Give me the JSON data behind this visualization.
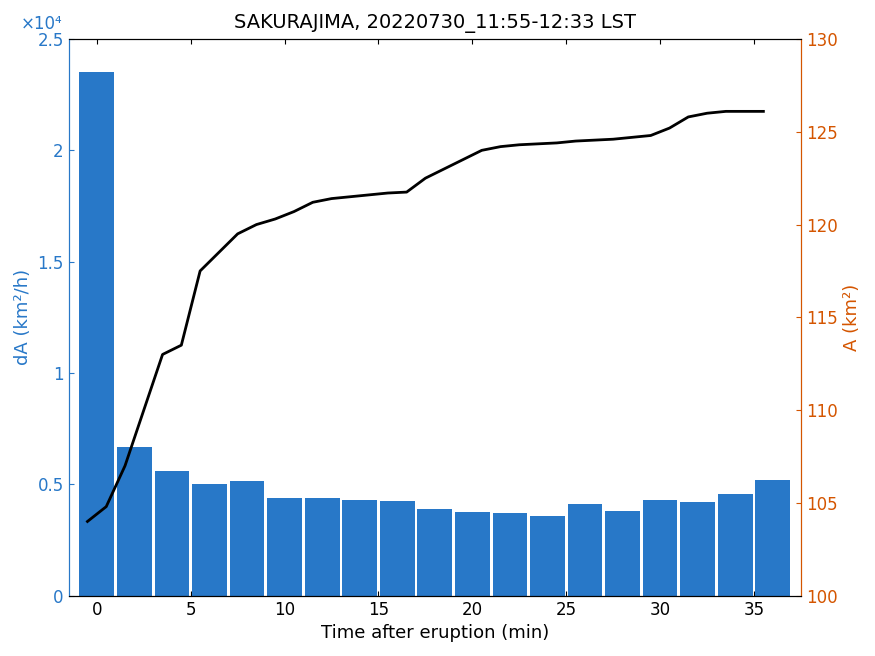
{
  "title": "SAKURAJIMA, 20220730_11:55-12:33 LST",
  "xlabel": "Time after eruption (min)",
  "ylabel_left": "dA (km²/h)",
  "ylabel_right": "A (km²)",
  "bar_color": "#2878c8",
  "line_color": "#000000",
  "left_axis_color": "#2878c8",
  "right_axis_color": "#d45500",
  "bar_times": [
    0,
    2,
    4,
    6,
    8,
    10,
    12,
    14,
    16,
    18,
    20,
    22,
    24,
    26,
    28,
    30,
    32,
    34,
    36
  ],
  "bar_heights": [
    23500,
    6700,
    5600,
    5000,
    5150,
    4400,
    4400,
    4300,
    4250,
    3900,
    3750,
    3700,
    3600,
    4100,
    3800,
    4300,
    4200,
    4550,
    5200
  ],
  "line_times": [
    -0.5,
    0.5,
    1.5,
    2.5,
    3.5,
    4.5,
    5.5,
    6.5,
    7.5,
    8.5,
    9.5,
    10.5,
    11.5,
    12.5,
    13.5,
    14.5,
    15.5,
    16.5,
    17.5,
    18.5,
    19.5,
    20.5,
    21.5,
    22.5,
    23.5,
    24.5,
    25.5,
    26.5,
    27.5,
    28.5,
    29.5,
    30.5,
    31.5,
    32.5,
    33.5,
    34.5,
    35.5
  ],
  "line_values": [
    104.0,
    104.8,
    107.0,
    110.0,
    113.0,
    113.5,
    117.5,
    118.5,
    119.5,
    120.0,
    120.3,
    120.7,
    121.2,
    121.4,
    121.5,
    121.6,
    121.7,
    121.75,
    122.5,
    123.0,
    123.5,
    124.0,
    124.2,
    124.3,
    124.35,
    124.4,
    124.5,
    124.55,
    124.6,
    124.7,
    124.8,
    125.2,
    125.8,
    126.0,
    126.1,
    126.1,
    126.1
  ],
  "xlim": [
    -1.5,
    37.5
  ],
  "ylim_left": [
    0,
    25000
  ],
  "ylim_right": [
    100,
    130
  ],
  "yticks_left": [
    0,
    5000,
    10000,
    15000,
    20000,
    25000
  ],
  "ytick_labels_left": [
    "0",
    "0.5",
    "1",
    "1.5",
    "2",
    "2.5"
  ],
  "yticks_right": [
    100,
    105,
    110,
    115,
    120,
    125,
    130
  ],
  "xticks": [
    0,
    5,
    10,
    15,
    20,
    25,
    30,
    35
  ],
  "bar_width": 1.85,
  "title_fontsize": 14,
  "label_fontsize": 13,
  "tick_fontsize": 12,
  "scale_label": "×10⁴"
}
